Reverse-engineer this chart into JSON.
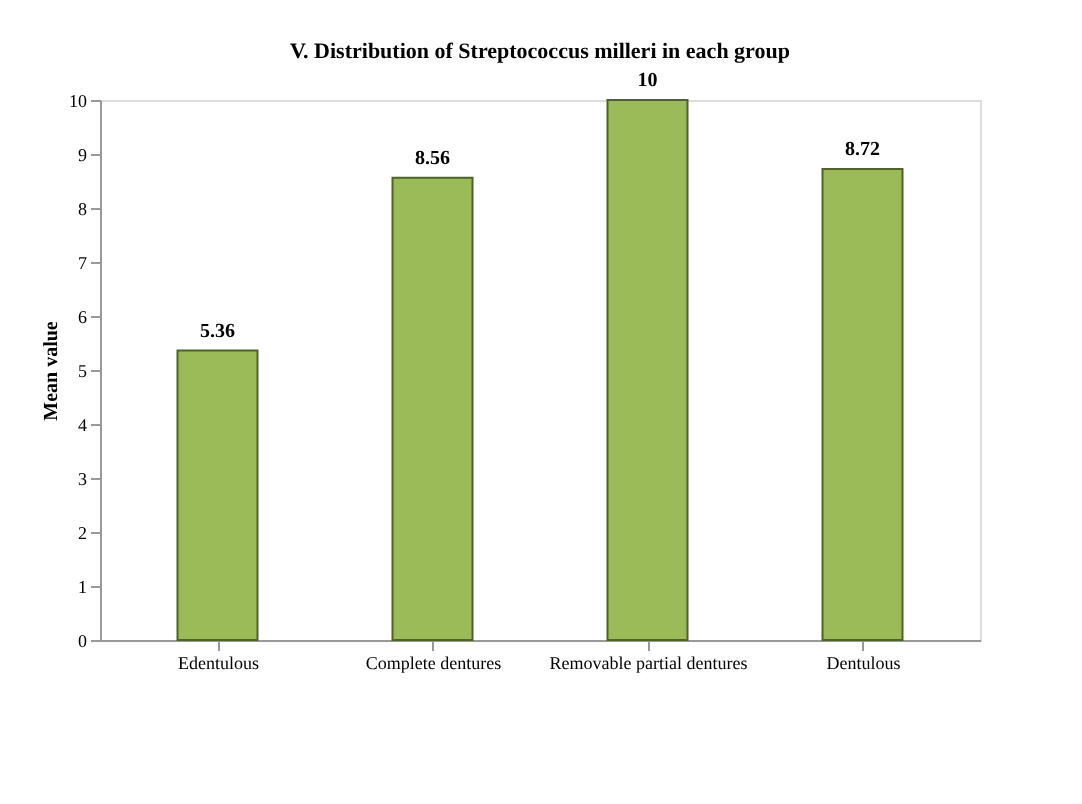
{
  "chart_data": {
    "type": "bar",
    "title": "V. Distribution  of Streptococcus milleri in each group",
    "ylabel": "Mean value",
    "categories": [
      "Edentulous",
      "Complete dentures",
      "Removable partial dentures",
      "Dentulous"
    ],
    "values": [
      5.36,
      8.56,
      10,
      8.72
    ],
    "color": "#9bbb59",
    "ylim": [
      0,
      10
    ],
    "yticks": [
      0,
      1,
      2,
      3,
      4,
      5,
      6,
      7,
      8,
      9,
      10
    ],
    "grid": false,
    "data_labels": true
  }
}
